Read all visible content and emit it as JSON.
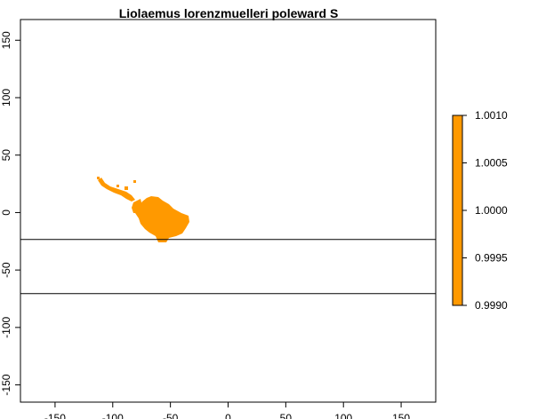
{
  "title": "Liolaemus lorenzmuelleri poleward S",
  "x_axis": {
    "ticks": [
      -150,
      -100,
      -50,
      0,
      50,
      100,
      150
    ],
    "tick_labels": [
      "-150",
      "-100",
      "-50",
      "0",
      "50",
      "100",
      "150"
    ],
    "range": [
      -180,
      180
    ]
  },
  "y_axis": {
    "ticks": [
      150,
      100,
      50,
      0,
      -50,
      -100,
      -150
    ],
    "tick_labels": [
      "150",
      "100",
      "50",
      "0",
      "-50",
      "-100",
      "-150"
    ],
    "range": [
      -165,
      168
    ]
  },
  "reference_lines_lat": [
    -23.4,
    -70.5
  ],
  "range_color": "#ff9900",
  "legend": {
    "labels": [
      "1.0010",
      "1.0005",
      "1.0000",
      "0.9995",
      "0.9990"
    ],
    "color": "#ff9900"
  }
}
